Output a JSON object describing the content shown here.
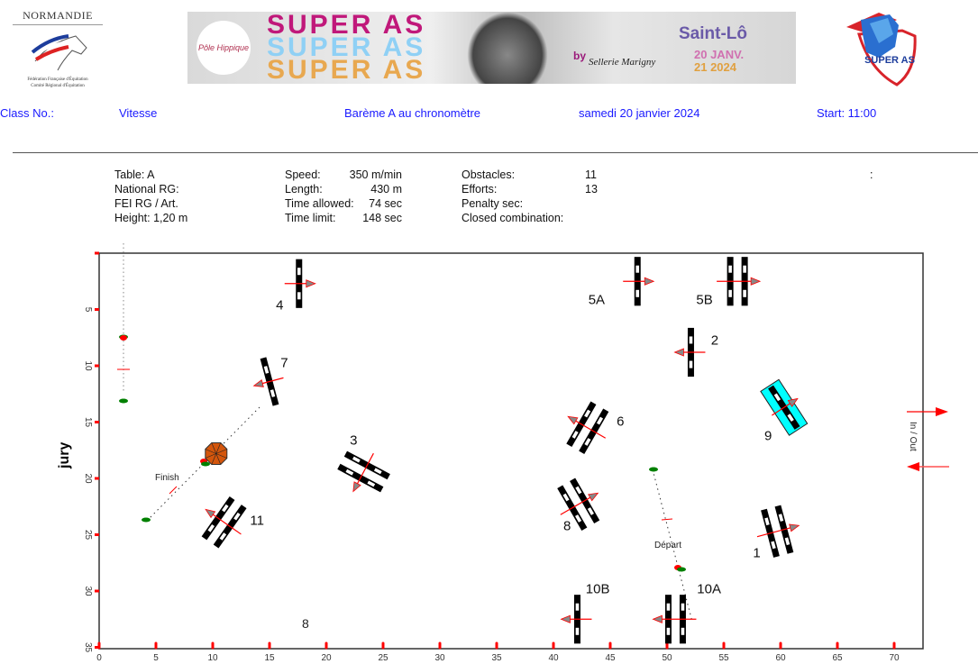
{
  "header": {
    "left_logo": {
      "title": "NORMANDIE",
      "lines": [
        "Fédération Française d'Équitation",
        "Comité Régional d'Équitation"
      ]
    },
    "banner": {
      "title": "SUPER AS",
      "colors": [
        "#c0187a",
        "#8fd0f5",
        "#e8a850"
      ],
      "circle_text": "Pôle Hippique",
      "sponsor_by": "by",
      "sponsor": "Sellerie Marigny",
      "city": "Saint-Lô",
      "date_line1": "20 JANV.",
      "date_line2": "21 2024"
    },
    "right_logo": {
      "text": "SUPER AS"
    }
  },
  "class_bar": {
    "class_no": "Class No.:",
    "name": "Vitesse",
    "bareme": "Barème A au chronomètre",
    "date": "samedi 20 janvier 2024",
    "start": "Start: 11:00"
  },
  "info": {
    "table": "Table: A",
    "national_rg": "National RG:",
    "fei_rg": "FEI RG / Art.",
    "height": "Height: 1,20 m",
    "speed_label": "Speed:",
    "speed": "350 m/min",
    "length_label": "Length:",
    "length": "430 m",
    "time_allowed_label": "Time allowed:",
    "time_allowed": "74 sec",
    "time_limit_label": "Time limit:",
    "time_limit": "148 sec",
    "obstacles_label": "Obstacles:",
    "obstacles": "11",
    "efforts_label": "Efforts:",
    "efforts": "13",
    "penalty_label": "Penalty sec:",
    "closed_label": "Closed combination:",
    "colon": ":"
  },
  "chart_data": {
    "type": "course-map",
    "ylabel": "jury",
    "x_ticks": [
      "0",
      "5",
      "10",
      "15",
      "20",
      "25",
      "30",
      "35",
      "40",
      "45",
      "50",
      "55",
      "60",
      "65",
      "70"
    ],
    "y_ticks": [
      "5",
      "10",
      "15",
      "20",
      "25",
      "30",
      "35"
    ],
    "xlim": [
      0,
      72.5
    ],
    "ylim": [
      0,
      35
    ],
    "in_out_label": "In / Out",
    "finish_label": "Finish",
    "start_label": "Départ",
    "stray_label": "8",
    "accent_color": "#ff0000",
    "water_color": "#00ffff",
    "obstacles": [
      {
        "label": "1",
        "x": 59.7,
        "y": 24.7,
        "rot": -15,
        "rails": 2,
        "dir": 1,
        "lx": 57.9,
        "ly": 26.7
      },
      {
        "label": "2",
        "x": 52.1,
        "y": 8.8,
        "rot": 0,
        "rails": 1,
        "dir": -1,
        "lx": 54.2,
        "ly": 7.8
      },
      {
        "label": "3",
        "x": 23.3,
        "y": 19.4,
        "rot": -62,
        "rails": 2,
        "dir": -1,
        "lx": 22.4,
        "ly": 16.7
      },
      {
        "label": "4",
        "x": 17.6,
        "y": 2.7,
        "rot": 0,
        "rails": 1,
        "dir": 1,
        "lx": 15.9,
        "ly": 4.7
      },
      {
        "label": "5A",
        "x": 47.4,
        "y": 2.5,
        "rot": 0,
        "rails": 1,
        "dir": 1,
        "lx": 43.8,
        "ly": 4.2
      },
      {
        "label": "5B",
        "x": 56.2,
        "y": 2.5,
        "rot": 0,
        "rails": 2,
        "dir": 1,
        "lx": 53.3,
        "ly": 4.2
      },
      {
        "label": "6",
        "x": 43.0,
        "y": 15.5,
        "rot": 30,
        "rails": 2,
        "dir": -1,
        "lx": 45.9,
        "ly": 15.0
      },
      {
        "label": "7",
        "x": 15.0,
        "y": 11.4,
        "rot": -15,
        "rails": 1,
        "dir": -1,
        "lx": 16.3,
        "ly": 9.8
      },
      {
        "label": "8",
        "x": 42.2,
        "y": 22.3,
        "rot": -30,
        "rails": 2,
        "dir": 1,
        "lx": 41.2,
        "ly": 24.3
      },
      {
        "label": "9",
        "x": 60.3,
        "y": 13.7,
        "rot": -33,
        "rails": 1,
        "dir": 1,
        "lx": 58.9,
        "ly": 16.3,
        "water": true
      },
      {
        "label": "10A",
        "x": 50.75,
        "y": 32.5,
        "rot": 0,
        "rails": 2,
        "dir": -1,
        "lx": 53.7,
        "ly": 29.9
      },
      {
        "label": "10B",
        "x": 42.1,
        "y": 32.5,
        "rot": 0,
        "rails": 1,
        "dir": -1,
        "lx": 43.9,
        "ly": 29.9
      },
      {
        "label": "11",
        "x": 11.0,
        "y": 23.9,
        "rot": 35,
        "rails": 2,
        "dir": -1,
        "lx": 13.9,
        "ly": 23.8
      }
    ]
  }
}
